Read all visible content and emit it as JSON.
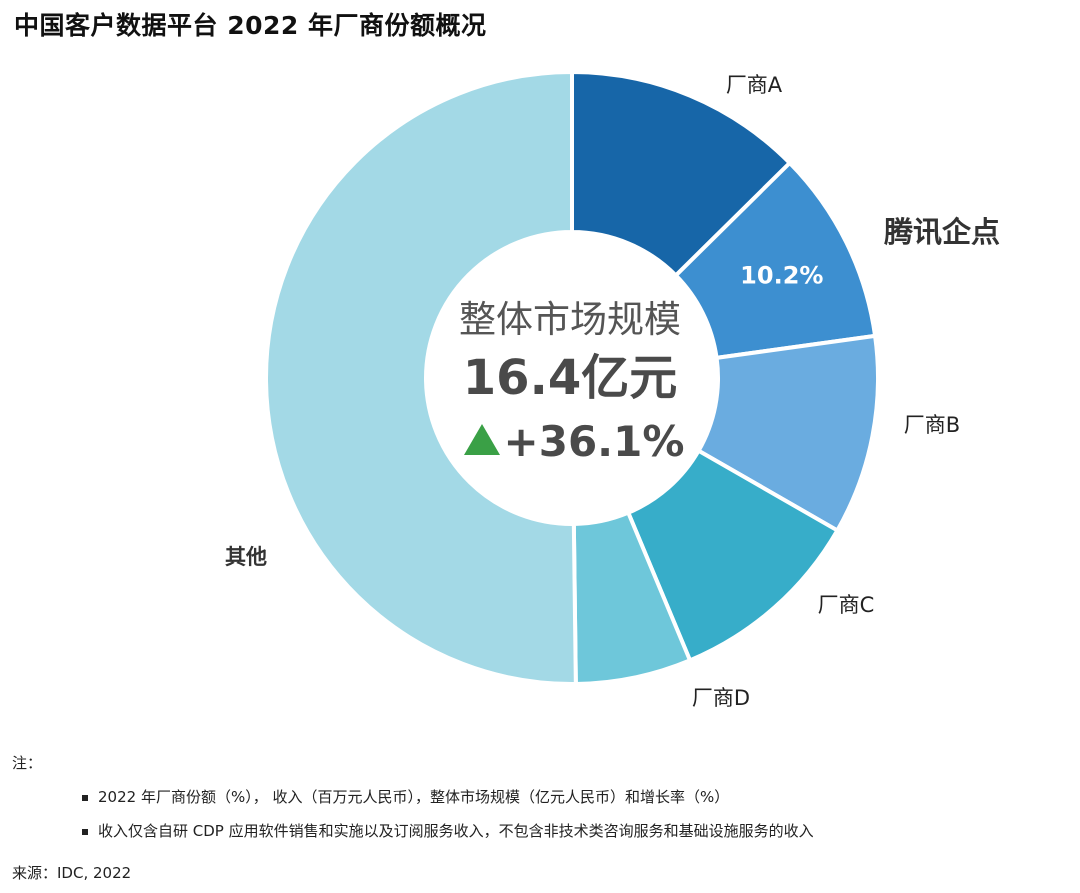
{
  "title": "中国客户数据平台 2022 年厂商份额概况",
  "center": {
    "label": "整体市场规模",
    "value": "16.4亿元",
    "growth": "+36.1%"
  },
  "chart_data": {
    "type": "pie",
    "title": "中国客户数据平台 2022 年厂商份额概况",
    "slices": [
      {
        "label": "厂商A",
        "value": 12.6,
        "color": "#1766a8",
        "data_label": ""
      },
      {
        "label": "腾讯企点",
        "value": 10.2,
        "color": "#3d8fd0",
        "data_label": "10.2%"
      },
      {
        "label": "厂商B",
        "value": 10.5,
        "color": "#6aace0",
        "data_label": ""
      },
      {
        "label": "厂商C",
        "value": 10.4,
        "color": "#37adc9",
        "data_label": ""
      },
      {
        "label": "厂商D",
        "value": 6.1,
        "color": "#6ec7da",
        "data_label": ""
      },
      {
        "label": "其他",
        "value": 50.2,
        "color": "#a3d9e6",
        "data_label": ""
      }
    ],
    "growth_arrow_color": "#3aa046"
  },
  "notes": {
    "heading": "注：",
    "items": [
      "2022 年厂商份额（%）， 收入（百万元人民币），整体市场规模（亿元人民币）和增长率（%）",
      "收入仅含自研 CDP 应用软件销售和实施以及订阅服务收入，不包含非技术类咨询服务和基础设施服务的收入"
    ]
  },
  "source": "来源：IDC, 2022"
}
